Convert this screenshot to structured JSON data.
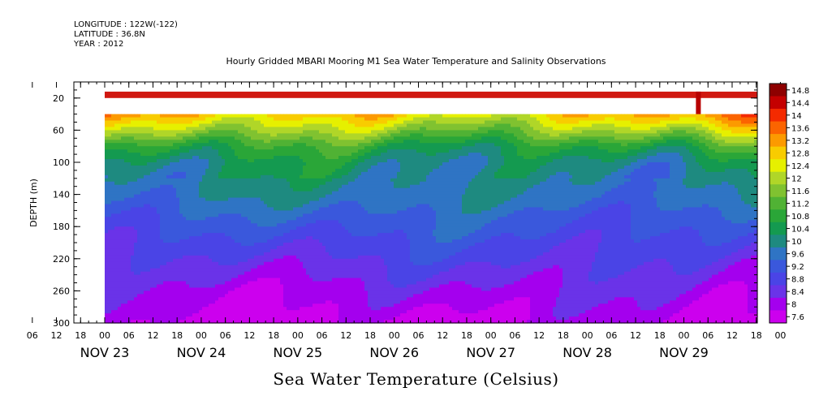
{
  "header": {
    "longitude": "LONGITUDE : 122W(-122)",
    "latitude": "LATITUDE : 36.8N",
    "year": "YEAR : 2012",
    "title": "Hourly Gridded MBARI Mooring M1 Sea Water Temperature and Salinity Observations"
  },
  "chart_data": {
    "type": "heatmap",
    "title": "Hourly Gridded MBARI Mooring M1 Sea Water Temperature and Salinity Observations",
    "subtitle": "Sea Water Temperature (Celsius)",
    "ylabel": "DEPTH (m)",
    "xlabel": "",
    "ylim": [
      300,
      0
    ],
    "y_ticks": [
      20,
      60,
      100,
      140,
      180,
      220,
      260,
      300
    ],
    "x_hour_labels": [
      "06",
      "12",
      "18",
      "00",
      "06",
      "12",
      "18",
      "00",
      "06",
      "12",
      "18",
      "00",
      "06",
      "12",
      "18",
      "00",
      "06",
      "12",
      "18",
      "00",
      "06",
      "12",
      "18",
      "00",
      "06",
      "12",
      "18",
      "00",
      "06",
      "12",
      "18",
      "00"
    ],
    "x_day_labels": [
      "NOV 23",
      "NOV 24",
      "NOV 25",
      "NOV 26",
      "NOV 27",
      "NOV 28",
      "NOV 29"
    ],
    "x_range": [
      "NOV 22 18:00",
      "NOV 30 06:00"
    ],
    "data_start": "NOV 23 00:00",
    "colorbar": {
      "levels": [
        7.6,
        8.0,
        8.4,
        8.8,
        9.2,
        9.6,
        10.0,
        10.4,
        10.8,
        11.2,
        11.6,
        12.0,
        12.4,
        12.8,
        13.2,
        13.6,
        14.0,
        14.4,
        14.8
      ],
      "labels": [
        "14.8",
        "14.4",
        "14",
        "13.6",
        "13.2",
        "12.8",
        "12.4",
        "12",
        "11.6",
        "11.2",
        "10.8",
        "10.4",
        "10",
        "9.6",
        "9.2",
        "8.8",
        "8.4",
        "8",
        "7.6"
      ]
    },
    "surface_sensor": {
      "depth_m": [
        10,
        20
      ],
      "value_c": 14.3,
      "gap_m": [
        20,
        40
      ]
    },
    "depth_profile": [
      {
        "depth_m": 40,
        "value_c": 13.0
      },
      {
        "depth_m": 60,
        "value_c": 12.0
      },
      {
        "depth_m": 80,
        "value_c": 10.9
      },
      {
        "depth_m": 100,
        "value_c": 10.3
      },
      {
        "depth_m": 140,
        "value_c": 9.9
      },
      {
        "depth_m": 180,
        "value_c": 9.3
      },
      {
        "depth_m": 220,
        "value_c": 8.8
      },
      {
        "depth_m": 260,
        "value_c": 8.3
      },
      {
        "depth_m": 300,
        "value_c": 7.9
      }
    ],
    "grid": false,
    "legend": "right"
  }
}
